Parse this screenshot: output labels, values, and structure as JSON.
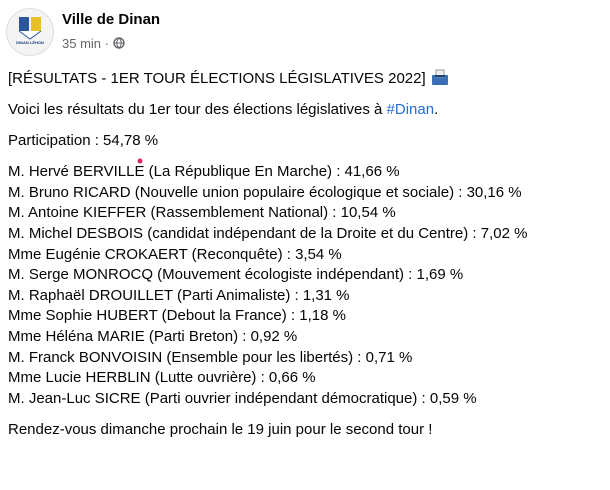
{
  "header": {
    "name": "Ville de Dinan",
    "time": "35 min",
    "separator": "·",
    "logo_text": "DINAN LÉHON"
  },
  "post": {
    "title": "[RÉSULTATS - 1ER TOUR ÉLECTIONS LÉGISLATIVES 2022]",
    "intro": {
      "text": "Voici les résultats du 1er tour des élections législatives à ",
      "hashtag": "#Dinan",
      "end": "."
    },
    "participation": "Participation : 54,78 %",
    "results": [
      "M. Hervé BERVILLE (La République En Marche) : 41,66 %",
      "M. Bruno RICARD (Nouvelle union populaire écologique et sociale) : 30,16 %",
      "M. Antoine KIEFFER (Rassemblement National) : 10,54 %",
      "M. Michel DESBOIS (candidat indépendant de la Droite et du Centre) : 7,02 %",
      "Mme Eugénie CROKAERT (Reconquête) : 3,54 %",
      "M. Serge MONROCQ (Mouvement écologiste indépendant) : 1,69 %",
      "M. Raphaël DROUILLET (Parti Animaliste) : 1,31 %",
      "Mme Sophie HUBERT (Debout la France) : 1,18 %",
      "Mme Héléna MARIE (Parti Breton) : 0,92 %",
      "M. Franck BONVOISIN (Ensemble pour les libertés) : 0,71 %",
      "Mme Lucie HERBLIN (Lutte ouvrière) : 0,66 %",
      "M. Jean-Luc SICRE (Parti ouvrier indépendant démocratique) : 0,59 %"
    ],
    "closing": "Rendez-vous dimanche prochain le 19 juin pour le second tour !"
  }
}
